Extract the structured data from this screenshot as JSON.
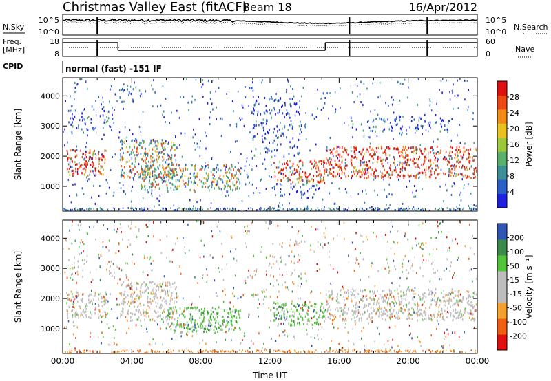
{
  "header": {
    "title": "Christmas Valley East (fitACF)",
    "beam": "Beam 18",
    "date": "16/Apr/2012"
  },
  "strips": {
    "nsky": {
      "label": "N.Sky",
      "left_ticks": [
        "10^5",
        "10^0"
      ],
      "right_ticks": [
        "10^5",
        "10^0"
      ],
      "right_label": "N.Search"
    },
    "freq": {
      "label_line1": "Freq.",
      "label_line2": "[MHz]",
      "left_ticks": [
        "18",
        "8"
      ],
      "right_ticks": [
        "60",
        "0"
      ],
      "right_label": "Nave"
    },
    "cpid": {
      "label": "CPID",
      "text": "normal (fast) -151 IF"
    }
  },
  "colors": {
    "power": [
      "#1f1fe0",
      "#2a5fc8",
      "#3d8f9a",
      "#58b06a",
      "#9cc83c",
      "#e8c020",
      "#f28a18",
      "#ec4a12",
      "#e01010"
    ],
    "velocity": [
      "#e01010",
      "#f06010",
      "#f3a030",
      "#bdbdbd",
      "#bdbdbd",
      "#52c43a",
      "#3c8a4a",
      "#2f55b5"
    ]
  },
  "chart_data": [
    {
      "type": "heatmap",
      "panel": "power",
      "title": "",
      "xlabel": "",
      "ylabel": "Slant Range [km]",
      "xlim": [
        "00:00",
        "00:00"
      ],
      "ylim": [
        180,
        4600
      ],
      "y_ticks": [
        "1000",
        "2000",
        "3000",
        "4000"
      ],
      "colorbar": {
        "label": "Power [dB]",
        "ticks": [
          "28",
          "24",
          "20",
          "16",
          "12",
          "8",
          "4"
        ],
        "range": [
          0,
          30
        ]
      },
      "regions": [
        {
          "t": [
            0.2,
            2.5
          ],
          "r": [
            1380,
            2250
          ],
          "level": "high"
        },
        {
          "t": [
            3.3,
            6.6
          ],
          "r": [
            1300,
            2600
          ],
          "level": "medium"
        },
        {
          "t": [
            4.5,
            10.3
          ],
          "r": [
            900,
            1750
          ],
          "level": "medium"
        },
        {
          "t": [
            12.2,
            15.2
          ],
          "r": [
            1150,
            1900
          ],
          "level": "high"
        },
        {
          "t": [
            15.2,
            24.0
          ],
          "r": [
            1300,
            2350
          ],
          "level": "high"
        },
        {
          "t": [
            0.3,
            3.0
          ],
          "r": [
            2700,
            3700
          ],
          "level": "low"
        },
        {
          "t": [
            3.2,
            4.6
          ],
          "r": [
            3800,
            4400
          ],
          "level": "low"
        },
        {
          "t": [
            10.9,
            13.8
          ],
          "r": [
            2000,
            4000
          ],
          "level": "low"
        },
        {
          "t": [
            16.5,
            22.5
          ],
          "r": [
            2850,
            3350
          ],
          "level": "low"
        },
        {
          "t": [
            12.0,
            15.0
          ],
          "r": [
            650,
            1150
          ],
          "level": "low"
        }
      ]
    },
    {
      "type": "heatmap",
      "panel": "velocity",
      "title": "",
      "xlabel": "Time UT",
      "ylabel": "Slant Range [km]",
      "xlim": [
        "00:00",
        "00:00"
      ],
      "ylim": [
        180,
        4600
      ],
      "x_ticks": [
        "00:00",
        "04:00",
        "08:00",
        "12:00",
        "16:00",
        "20:00",
        "00:00"
      ],
      "y_ticks": [
        "1000",
        "2000",
        "3000",
        "4000"
      ],
      "colorbar": {
        "label": "Velocity [m s⁻¹]",
        "ticks": [
          "200",
          "100",
          "50",
          "15",
          "-15",
          "-50",
          "-100",
          "-200"
        ],
        "range": [
          -250,
          250
        ]
      },
      "regions": [
        {
          "t": [
            0.2,
            2.5
          ],
          "r": [
            1380,
            2250
          ],
          "v": "near-zero"
        },
        {
          "t": [
            3.3,
            6.6
          ],
          "r": [
            1300,
            2600
          ],
          "v": "near-zero"
        },
        {
          "t": [
            6.0,
            10.3
          ],
          "r": [
            900,
            1750
          ],
          "v": "positive"
        },
        {
          "t": [
            12.2,
            15.2
          ],
          "r": [
            1150,
            1900
          ],
          "v": "positive"
        },
        {
          "t": [
            15.2,
            24.0
          ],
          "r": [
            1300,
            2350
          ],
          "v": "near-zero"
        }
      ]
    }
  ]
}
